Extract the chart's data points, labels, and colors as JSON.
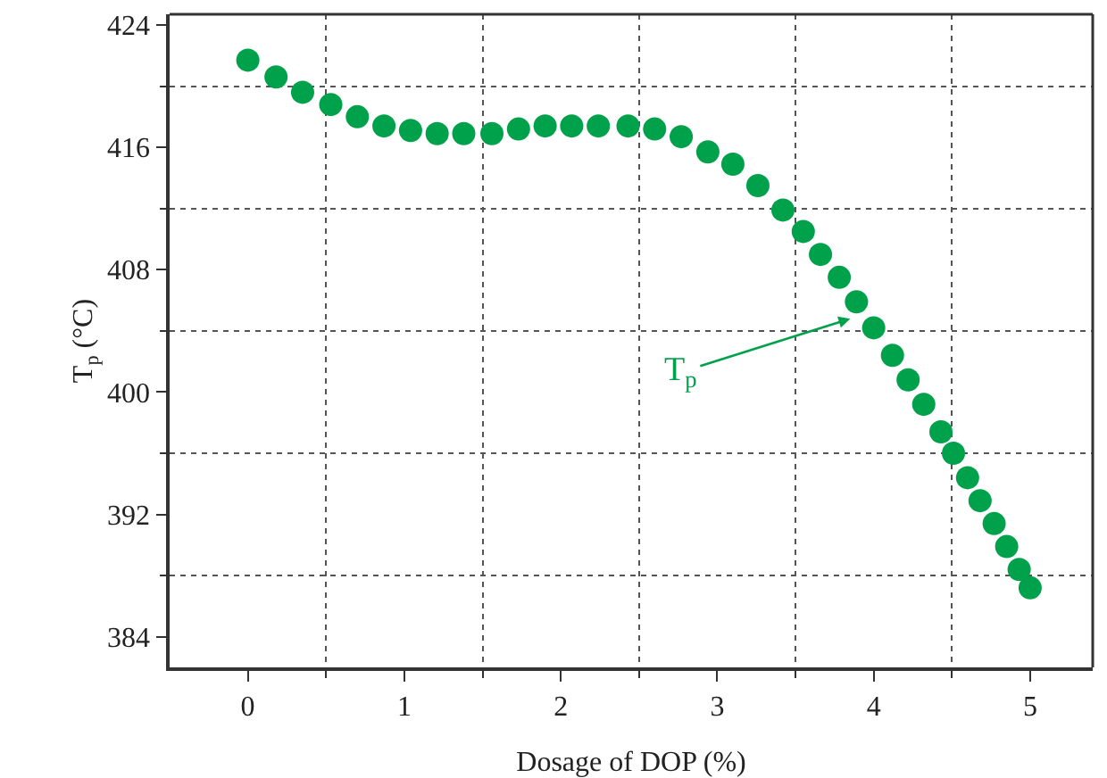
{
  "chart_data": {
    "type": "scatter",
    "xlabel": "Dosage of DOP (%)",
    "ylabel": "T$_{p}$ (°C)",
    "x": [
      0,
      0.18,
      0.35,
      0.53,
      0.7,
      0.87,
      1.04,
      1.21,
      1.38,
      1.56,
      1.73,
      1.9,
      2.07,
      2.24,
      2.43,
      2.6,
      2.77,
      2.94,
      3.1,
      3.26,
      3.42,
      3.55,
      3.66,
      3.78,
      3.89,
      4.0,
      4.12,
      4.22,
      4.32,
      4.43,
      4.51,
      4.6,
      4.68,
      4.77,
      4.85,
      4.93,
      5.0
    ],
    "series": [
      {
        "color": "#00a14b",
        "values": [
          421.7,
          420.6,
          419.6,
          418.8,
          418.0,
          417.4,
          417.1,
          416.9,
          416.9,
          416.9,
          417.2,
          417.4,
          417.4,
          417.4,
          417.4,
          417.2,
          416.7,
          415.7,
          414.9,
          413.5,
          411.9,
          410.5,
          409.0,
          407.5,
          405.9,
          404.2,
          402.4,
          400.8,
          399.2,
          397.4,
          396.0,
          394.4,
          392.9,
          391.4,
          389.9,
          388.4,
          387.2
        ]
      }
    ],
    "xlim": [
      -0.5,
      5.4
    ],
    "xticks": [
      0,
      1,
      2,
      3,
      4,
      5
    ],
    "ylim": [
      382,
      424.7
    ],
    "yticks": [
      384,
      392,
      400,
      408,
      416,
      424
    ],
    "grid": true,
    "marker": "circle",
    "annotations": [
      {
        "text": "T$_{p}$",
        "x": 3.85,
        "y": 404.8
      }
    ]
  }
}
